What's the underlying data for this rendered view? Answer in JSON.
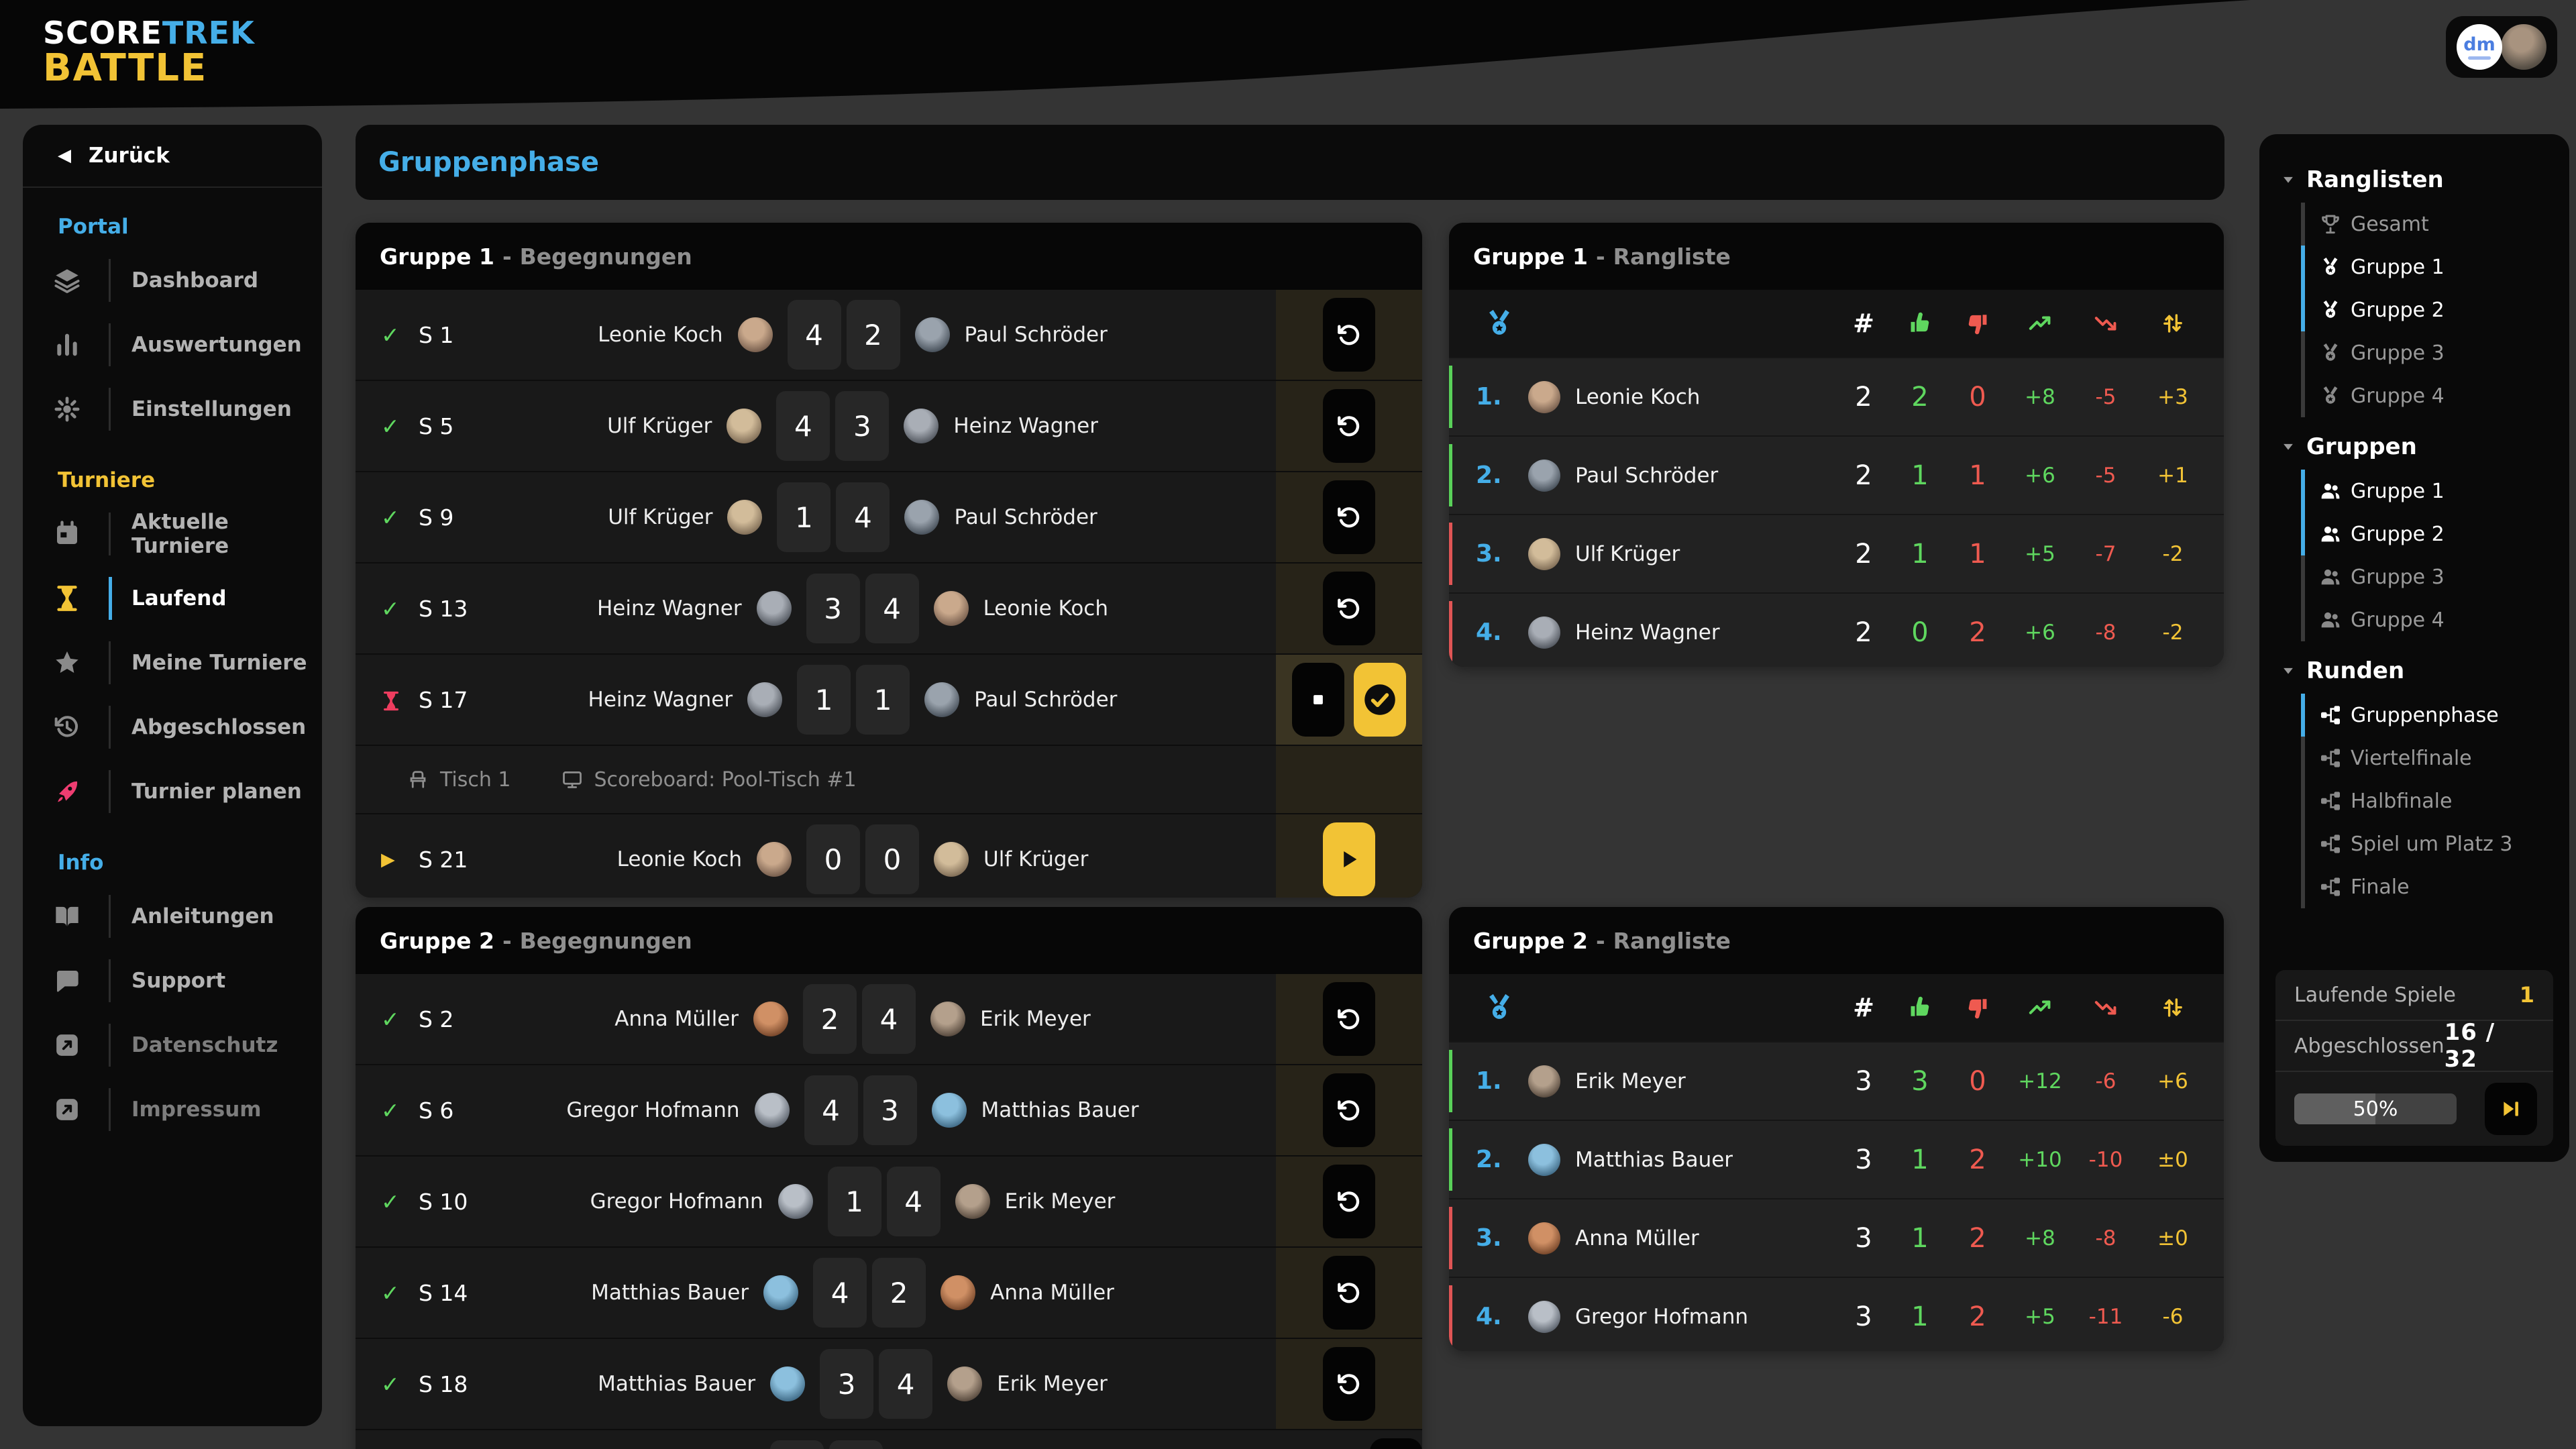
{
  "app": {
    "logo": {
      "part1": "SCORE",
      "part2": "TREK",
      "part3": "BATTLE"
    },
    "colors": {
      "accent_blue": "#45aee8",
      "accent_yellow": "#f2c335",
      "green": "#5fd75f",
      "red": "#ef5a50",
      "pink": "#ee3d71",
      "rail_green": "#59d159",
      "rail_red": "#e05555"
    }
  },
  "topbar": {
    "avatar_badge_text": "dm"
  },
  "sidebar": {
    "back_label": "Zurück",
    "sections": [
      {
        "title": "Portal",
        "items": [
          {
            "label": "Dashboard",
            "icon": "layers-icon"
          },
          {
            "label": "Auswertungen",
            "icon": "bar-chart-icon"
          },
          {
            "label": "Einstellungen",
            "icon": "gears-icon"
          }
        ]
      },
      {
        "title": "Turniere",
        "items": [
          {
            "label": "Aktuelle Turniere",
            "icon": "calendar-icon"
          },
          {
            "label": "Laufend",
            "icon": "hourglass-icon",
            "active": true
          },
          {
            "label": "Meine Turniere",
            "icon": "star-icon"
          },
          {
            "label": "Abgeschlossen",
            "icon": "history-icon"
          },
          {
            "label": "Turnier planen",
            "icon": "rocket-icon"
          }
        ]
      },
      {
        "title": "Info",
        "items": [
          {
            "label": "Anleitungen",
            "icon": "book-icon"
          },
          {
            "label": "Support",
            "icon": "chat-icon"
          },
          {
            "label": "Datenschutz",
            "icon": "external-link-icon"
          },
          {
            "label": "Impressum",
            "icon": "external-link-icon"
          }
        ]
      }
    ]
  },
  "main": {
    "page_title": "Gruppenphase",
    "group1_matches": {
      "title_strong": "Gruppe 1",
      "title_sep": "-",
      "title_rest": "Begegnungen",
      "rows": [
        {
          "id": "S 1",
          "p1": "Leonie Koch",
          "s1": "4",
          "s2": "2",
          "p2": "Paul Schröder",
          "state": "done"
        },
        {
          "id": "S 5",
          "p1": "Ulf Krüger",
          "s1": "4",
          "s2": "3",
          "p2": "Heinz Wagner",
          "state": "done"
        },
        {
          "id": "S 9",
          "p1": "Ulf Krüger",
          "s1": "1",
          "s2": "4",
          "p2": "Paul Schröder",
          "state": "done"
        },
        {
          "id": "S 13",
          "p1": "Heinz Wagner",
          "s1": "3",
          "s2": "4",
          "p2": "Leonie Koch",
          "state": "done"
        },
        {
          "id": "S 17",
          "p1": "Heinz Wagner",
          "s1": "1",
          "s2": "1",
          "p2": "Paul Schröder",
          "state": "live",
          "meta_table": "Tisch 1",
          "meta_scoreboard": "Scoreboard: Pool-Tisch #1"
        },
        {
          "id": "S 21",
          "p1": "Leonie Koch",
          "s1": "0",
          "s2": "0",
          "p2": "Ulf Krüger",
          "state": "ready"
        }
      ]
    },
    "group1_table": {
      "title_strong": "Gruppe 1",
      "title_sep": "-",
      "title_rest": "Rangliste",
      "rows": [
        {
          "rank": "1.",
          "name": "Leonie Koch",
          "games": "2",
          "wins": "2",
          "losses": "0",
          "plus": "+8",
          "minus": "-5",
          "diff": "+3",
          "trend": "up"
        },
        {
          "rank": "2.",
          "name": "Paul Schröder",
          "games": "2",
          "wins": "1",
          "losses": "1",
          "plus": "+6",
          "minus": "-5",
          "diff": "+1",
          "trend": "up"
        },
        {
          "rank": "3.",
          "name": "Ulf Krüger",
          "games": "2",
          "wins": "1",
          "losses": "1",
          "plus": "+5",
          "minus": "-7",
          "diff": "-2",
          "trend": "down"
        },
        {
          "rank": "4.",
          "name": "Heinz Wagner",
          "games": "2",
          "wins": "0",
          "losses": "2",
          "plus": "+6",
          "minus": "-8",
          "diff": "-2",
          "trend": "down"
        }
      ]
    },
    "group2_matches": {
      "title_strong": "Gruppe 2",
      "title_sep": "-",
      "title_rest": "Begegnungen",
      "rows": [
        {
          "id": "S 2",
          "p1": "Anna Müller",
          "s1": "2",
          "s2": "4",
          "p2": "Erik Meyer",
          "state": "done"
        },
        {
          "id": "S 6",
          "p1": "Gregor Hofmann",
          "s1": "4",
          "s2": "3",
          "p2": "Matthias Bauer",
          "state": "done"
        },
        {
          "id": "S 10",
          "p1": "Gregor Hofmann",
          "s1": "1",
          "s2": "4",
          "p2": "Erik Meyer",
          "state": "done"
        },
        {
          "id": "S 14",
          "p1": "Matthias Bauer",
          "s1": "4",
          "s2": "2",
          "p2": "Anna Müller",
          "state": "done"
        },
        {
          "id": "S 18",
          "p1": "Matthias Bauer",
          "s1": "3",
          "s2": "4",
          "p2": "Erik Meyer",
          "state": "done"
        }
      ]
    },
    "group2_table": {
      "title_strong": "Gruppe 2",
      "title_sep": "-",
      "title_rest": "Rangliste",
      "rows": [
        {
          "rank": "1.",
          "name": "Erik Meyer",
          "games": "3",
          "wins": "3",
          "losses": "0",
          "plus": "+12",
          "minus": "-6",
          "diff": "+6",
          "trend": "up"
        },
        {
          "rank": "2.",
          "name": "Matthias Bauer",
          "games": "3",
          "wins": "1",
          "losses": "2",
          "plus": "+10",
          "minus": "-10",
          "diff": "±0",
          "trend": "up"
        },
        {
          "rank": "3.",
          "name": "Anna Müller",
          "games": "3",
          "wins": "1",
          "losses": "2",
          "plus": "+8",
          "minus": "-8",
          "diff": "±0",
          "trend": "down"
        },
        {
          "rank": "4.",
          "name": "Gregor Hofmann",
          "games": "3",
          "wins": "1",
          "losses": "2",
          "plus": "+5",
          "minus": "-11",
          "diff": "-6",
          "trend": "down"
        }
      ]
    }
  },
  "rightpanel": {
    "sections": [
      {
        "title": "Ranglisten",
        "items": [
          {
            "label": "Gesamt",
            "icon": "trophy-icon"
          },
          {
            "label": "Gruppe 1",
            "icon": "medal-icon",
            "active": true
          },
          {
            "label": "Gruppe 2",
            "icon": "medal-icon",
            "active": true
          },
          {
            "label": "Gruppe 3",
            "icon": "medal-icon"
          },
          {
            "label": "Gruppe 4",
            "icon": "medal-icon"
          }
        ]
      },
      {
        "title": "Gruppen",
        "items": [
          {
            "label": "Gruppe 1",
            "icon": "users-icon",
            "active": true
          },
          {
            "label": "Gruppe 2",
            "icon": "users-icon",
            "active": true
          },
          {
            "label": "Gruppe 3",
            "icon": "users-icon"
          },
          {
            "label": "Gruppe 4",
            "icon": "users-icon"
          }
        ]
      },
      {
        "title": "Runden",
        "items": [
          {
            "label": "Gruppenphase",
            "icon": "bracket-icon",
            "active": true
          },
          {
            "label": "Viertelfinale",
            "icon": "bracket-icon"
          },
          {
            "label": "Halbfinale",
            "icon": "bracket-icon"
          },
          {
            "label": "Spiel um Platz 3",
            "icon": "bracket-icon"
          },
          {
            "label": "Finale",
            "icon": "bracket-icon"
          }
        ]
      }
    ],
    "stats": {
      "running_label": "Laufende Spiele",
      "running_value": "1",
      "done_label": "Abgeschlossen",
      "done_value": "16 / 32",
      "progress_label": "50%",
      "progress_pct": 50
    }
  }
}
